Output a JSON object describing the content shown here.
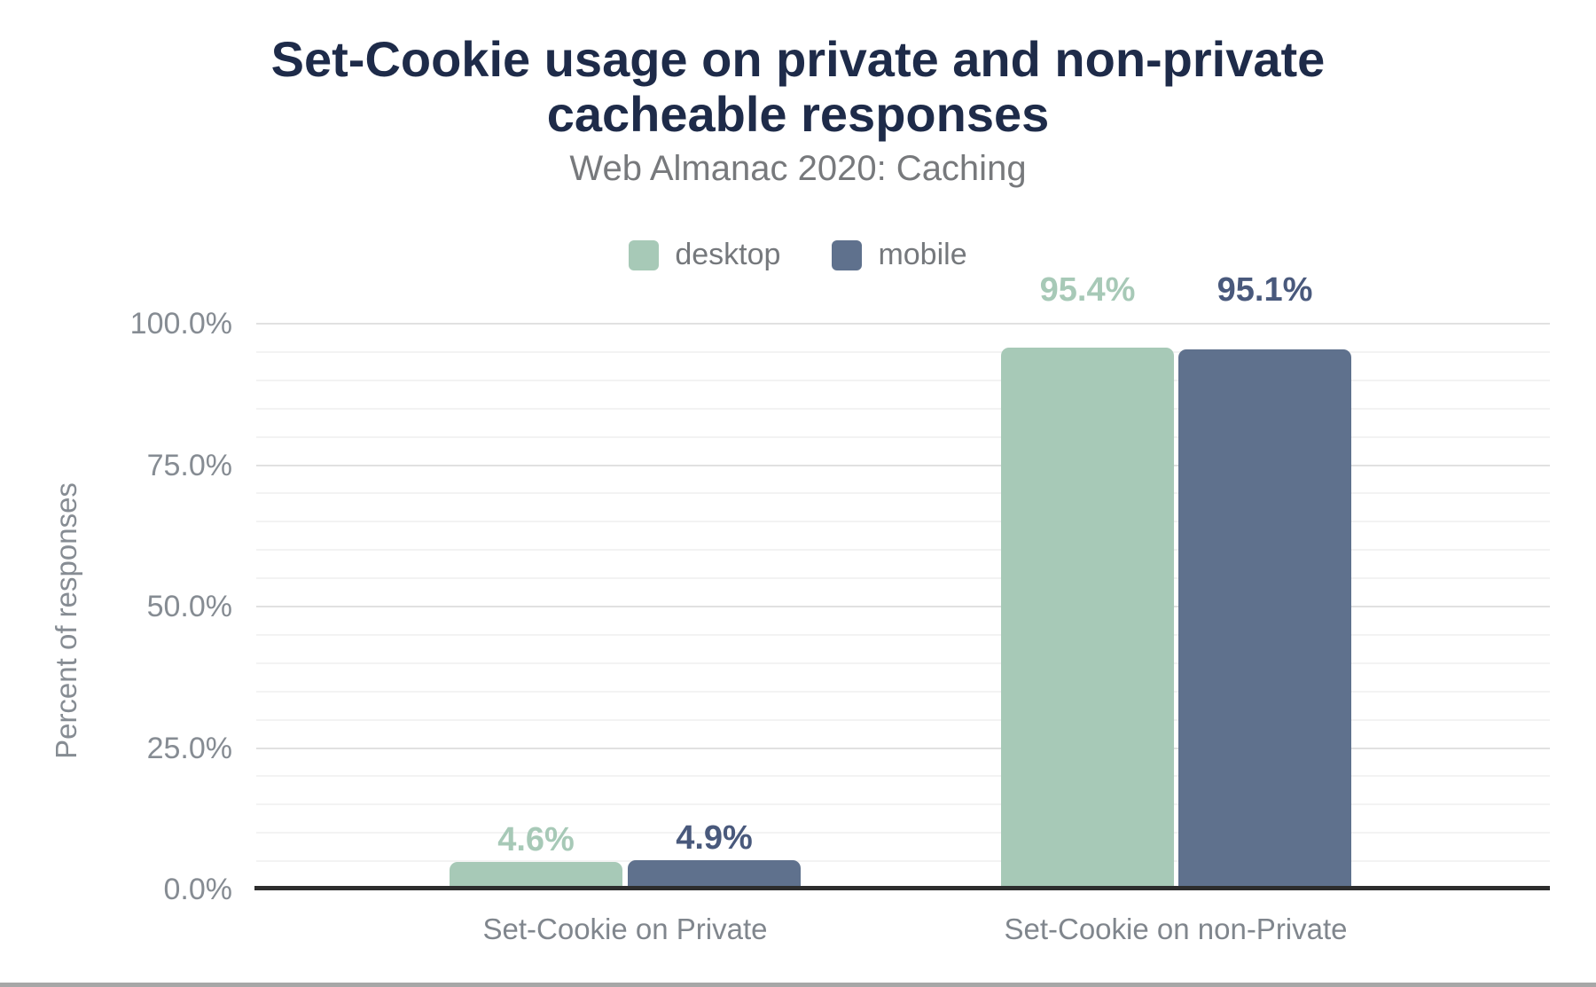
{
  "header": {
    "title_line1": "Set-Cookie usage on private and non-private",
    "title_line2": "cacheable responses",
    "subtitle": "Web Almanac 2020: Caching"
  },
  "colors": {
    "title": "#1e2b49",
    "subtitle_gray": "#77797c",
    "axis_text_gray": "#868c93",
    "axis_line": "#2d2d2d",
    "grid_major": "#e1e1e1",
    "grid_minor": "#f3f3f3",
    "desktop": "#a7c9b7",
    "mobile": "#5f718d",
    "desktop_data_label": "#a7c9b7",
    "mobile_data_label": "#49597c",
    "bottom_strip": "#a7a7a7"
  },
  "chart_data": {
    "type": "bar",
    "title": "Set-Cookie usage on private and non-private cacheable responses",
    "subtitle": "Web Almanac 2020: Caching",
    "categories": [
      "Set-Cookie on Private",
      "Set-Cookie on non-Private"
    ],
    "series": [
      {
        "name": "desktop",
        "color": "#a7c9b7",
        "values": [
          4.6,
          95.4
        ],
        "data_labels": [
          "4.6%",
          "95.4%"
        ],
        "label_color": "#a7c9b7"
      },
      {
        "name": "mobile",
        "color": "#5f718d",
        "values": [
          4.9,
          95.1
        ],
        "data_labels": [
          "4.9%",
          "95.1%"
        ],
        "label_color": "#49597c"
      }
    ],
    "xlabel": "",
    "ylabel": "Percent of responses",
    "y_ticks": [
      "0.0%",
      "25.0%",
      "50.0%",
      "75.0%",
      "100.0%"
    ],
    "ylim": [
      0,
      100
    ],
    "grid": "horizontal; major every 25%, minor every 5%",
    "legend_position": "top-center",
    "legend": [
      "desktop",
      "mobile"
    ]
  }
}
